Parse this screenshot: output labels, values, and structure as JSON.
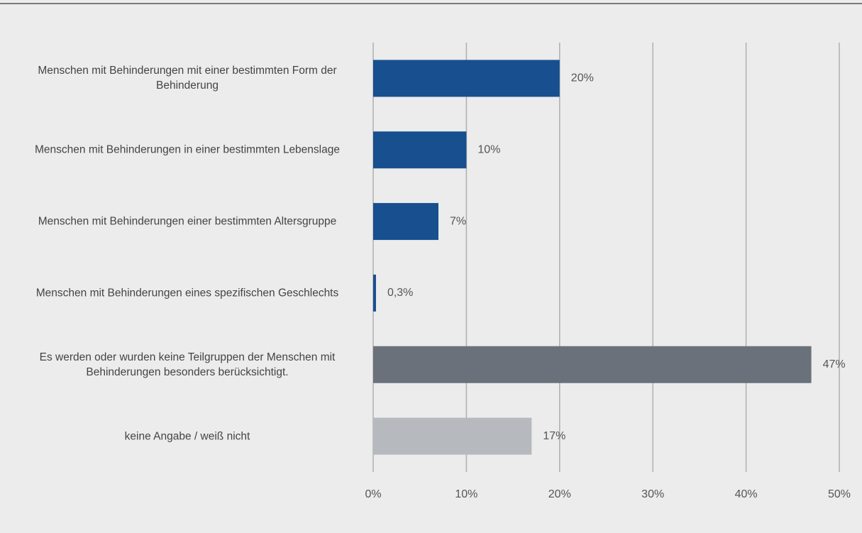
{
  "chart_data": {
    "type": "bar",
    "orientation": "horizontal",
    "categories": [
      "Menschen mit Behinderungen mit einer bestimmten Form der Behinderung",
      "Menschen mit Behinderungen in einer bestimmten Lebenslage",
      "Menschen mit Behinderungen einer bestimmten Altersgruppe",
      "Menschen mit Behinderungen eines spezifischen Geschlechts",
      "Es werden oder wurden keine Teilgruppen der Menschen mit Behinderungen besonders berücksichtigt.",
      "keine Angabe / weiß nicht"
    ],
    "values": [
      20,
      10,
      7,
      0.3,
      47,
      17
    ],
    "value_labels": [
      "20%",
      "10%",
      "7%",
      "0,3%",
      "47%",
      "17%"
    ],
    "colors": [
      "#174f8f",
      "#174f8f",
      "#174f8f",
      "#174f8f",
      "#6a717b",
      "#b6babe"
    ],
    "xlim": [
      0,
      50
    ],
    "xticks": [
      {
        "value": 0,
        "label": "0%"
      },
      {
        "value": 10,
        "label": "10%"
      },
      {
        "value": 20,
        "label": "20%"
      },
      {
        "value": 30,
        "label": "30%"
      },
      {
        "value": 40,
        "label": "40%"
      },
      {
        "value": 50,
        "label": "50%"
      }
    ],
    "grid": true
  }
}
